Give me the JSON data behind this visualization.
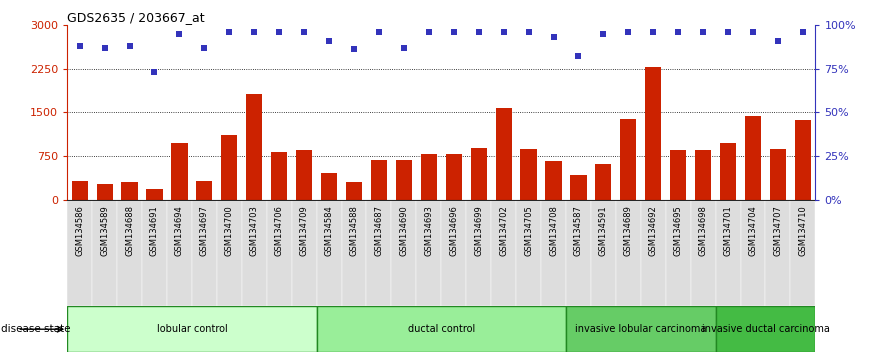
{
  "title": "GDS2635 / 203667_at",
  "samples": [
    "GSM134586",
    "GSM134589",
    "GSM134688",
    "GSM134691",
    "GSM134694",
    "GSM134697",
    "GSM134700",
    "GSM134703",
    "GSM134706",
    "GSM134709",
    "GSM134584",
    "GSM134588",
    "GSM134687",
    "GSM134690",
    "GSM134693",
    "GSM134696",
    "GSM134699",
    "GSM134702",
    "GSM134705",
    "GSM134708",
    "GSM134587",
    "GSM134591",
    "GSM134689",
    "GSM134692",
    "GSM134695",
    "GSM134698",
    "GSM134701",
    "GSM134704",
    "GSM134707",
    "GSM134710"
  ],
  "counts": [
    320,
    280,
    310,
    195,
    970,
    330,
    1110,
    1820,
    830,
    850,
    470,
    310,
    690,
    690,
    790,
    790,
    890,
    1570,
    870,
    670,
    420,
    610,
    1390,
    2270,
    850,
    850,
    980,
    1440,
    870,
    1370
  ],
  "percentile_ranks": [
    88,
    87,
    88,
    73,
    95,
    87,
    96,
    96,
    96,
    96,
    91,
    86,
    96,
    87,
    96,
    96,
    96,
    96,
    96,
    93,
    82,
    95,
    96,
    96,
    96,
    96,
    96,
    96,
    91,
    96
  ],
  "groups": [
    {
      "label": "lobular control",
      "start": 0,
      "end": 10,
      "color": "#ccffcc"
    },
    {
      "label": "ductal control",
      "start": 10,
      "end": 20,
      "color": "#99ee99"
    },
    {
      "label": "invasive lobular carcinoma",
      "start": 20,
      "end": 26,
      "color": "#66cc66"
    },
    {
      "label": "invasive ductal carcinoma",
      "start": 26,
      "end": 30,
      "color": "#44bb44"
    }
  ],
  "ylim_left": [
    0,
    3000
  ],
  "ylim_right": [
    0,
    100
  ],
  "yticks_left": [
    0,
    750,
    1500,
    2250,
    3000
  ],
  "yticks_right": [
    0,
    25,
    50,
    75,
    100
  ],
  "bar_color": "#cc2200",
  "dot_color": "#3333bb",
  "background_color": "#ffffff",
  "xticklabel_bg": "#dddddd",
  "group_border_color": "#228822"
}
